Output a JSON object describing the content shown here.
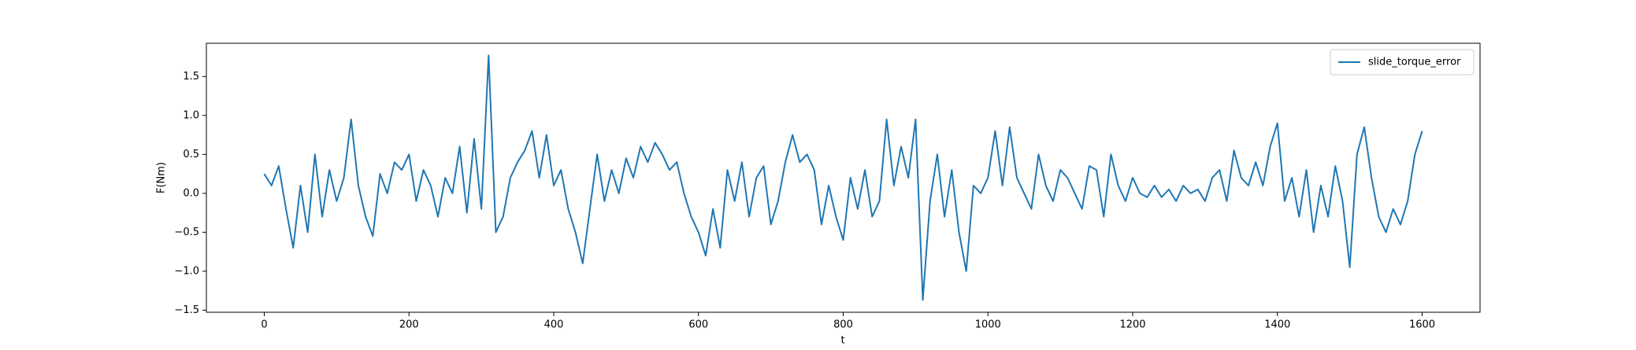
{
  "chart_data": {
    "type": "line",
    "x_label": "t",
    "y_label": "F(Nm)",
    "x": [
      0,
      10,
      20,
      30,
      40,
      50,
      60,
      70,
      80,
      90,
      100,
      110,
      120,
      130,
      140,
      150,
      160,
      170,
      180,
      190,
      200,
      210,
      220,
      230,
      240,
      250,
      260,
      270,
      280,
      290,
      300,
      310,
      320,
      330,
      340,
      350,
      360,
      370,
      380,
      390,
      400,
      410,
      420,
      430,
      440,
      450,
      460,
      470,
      480,
      490,
      500,
      510,
      520,
      530,
      540,
      550,
      560,
      570,
      580,
      590,
      600,
      610,
      620,
      630,
      640,
      650,
      660,
      670,
      680,
      690,
      700,
      710,
      720,
      730,
      740,
      750,
      760,
      770,
      780,
      790,
      800,
      810,
      820,
      830,
      840,
      850,
      860,
      870,
      880,
      890,
      900,
      910,
      920,
      930,
      940,
      950,
      960,
      970,
      980,
      990,
      1000,
      1010,
      1020,
      1030,
      1040,
      1050,
      1060,
      1070,
      1080,
      1090,
      1100,
      1110,
      1120,
      1130,
      1140,
      1150,
      1160,
      1170,
      1180,
      1190,
      1200,
      1210,
      1220,
      1230,
      1240,
      1250,
      1260,
      1270,
      1280,
      1290,
      1300,
      1310,
      1320,
      1330,
      1340,
      1350,
      1360,
      1370,
      1380,
      1390,
      1400,
      1410,
      1420,
      1430,
      1440,
      1450,
      1460,
      1470,
      1480,
      1490,
      1500,
      1510,
      1520,
      1530,
      1540,
      1550,
      1560,
      1570,
      1580,
      1590,
      1600
    ],
    "series": [
      {
        "name": "slide_torque_error",
        "color": "#1f77b4",
        "values": [
          0.25,
          0.1,
          0.35,
          -0.2,
          -0.7,
          0.1,
          -0.5,
          0.5,
          -0.3,
          0.3,
          -0.1,
          0.2,
          0.95,
          0.1,
          -0.3,
          -0.55,
          0.25,
          0.0,
          0.4,
          0.3,
          0.5,
          -0.1,
          0.3,
          0.1,
          -0.3,
          0.2,
          0.0,
          0.6,
          -0.25,
          0.7,
          -0.2,
          1.77,
          -0.5,
          -0.3,
          0.2,
          0.4,
          0.55,
          0.8,
          0.2,
          0.75,
          0.1,
          0.3,
          -0.2,
          -0.5,
          -0.9,
          -0.2,
          0.5,
          -0.1,
          0.3,
          0.0,
          0.45,
          0.2,
          0.6,
          0.4,
          0.65,
          0.5,
          0.3,
          0.4,
          0.0,
          -0.3,
          -0.5,
          -0.8,
          -0.2,
          -0.7,
          0.3,
          -0.1,
          0.4,
          -0.3,
          0.2,
          0.35,
          -0.4,
          -0.1,
          0.4,
          0.75,
          0.4,
          0.5,
          0.3,
          -0.4,
          0.1,
          -0.3,
          -0.6,
          0.2,
          -0.2,
          0.3,
          -0.3,
          -0.1,
          0.95,
          0.1,
          0.6,
          0.2,
          0.95,
          -1.37,
          -0.1,
          0.5,
          -0.3,
          0.3,
          -0.5,
          -1.0,
          0.1,
          0.0,
          0.2,
          0.8,
          0.1,
          0.85,
          0.2,
          0.0,
          -0.2,
          0.5,
          0.1,
          -0.1,
          0.3,
          0.2,
          0.0,
          -0.2,
          0.35,
          0.3,
          -0.3,
          0.5,
          0.1,
          -0.1,
          0.2,
          0.0,
          -0.05,
          0.1,
          -0.05,
          0.05,
          -0.1,
          0.1,
          0.0,
          0.05,
          -0.1,
          0.2,
          0.3,
          -0.1,
          0.55,
          0.2,
          0.1,
          0.4,
          0.1,
          0.6,
          0.9,
          -0.1,
          0.2,
          -0.3,
          0.3,
          -0.5,
          0.1,
          -0.3,
          0.35,
          -0.1,
          -0.95,
          0.5,
          0.85,
          0.2,
          -0.3,
          -0.5,
          -0.2,
          -0.4,
          -0.1,
          0.5,
          0.8
        ]
      }
    ],
    "xlim": [
      -80,
      1680
    ],
    "xticks": [
      0,
      200,
      400,
      600,
      800,
      1000,
      1200,
      1400,
      1600
    ],
    "ylim": [
      -1.527,
      1.927
    ],
    "yticks": [
      {
        "value": -1.5,
        "label": "−1.5"
      },
      {
        "value": -1,
        "label": "−1.0"
      },
      {
        "value": -0.5,
        "label": "−0.5"
      },
      {
        "value": 0,
        "label": "0.0"
      },
      0.5,
      {
        "value": 1,
        "label": "1.0"
      },
      1.5
    ],
    "legend": "upper right"
  }
}
